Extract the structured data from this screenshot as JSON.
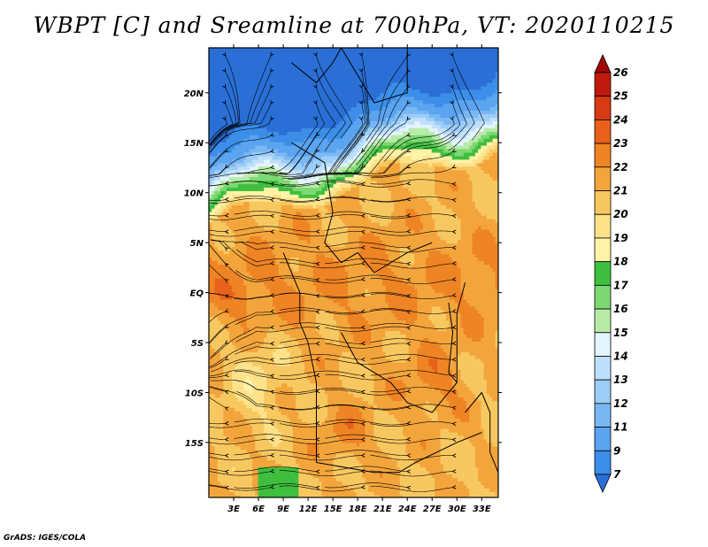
{
  "title": "WBPT [C] and Sreamline at 700hPa, VT: 2020110215",
  "credit": "GrADS: IGES/COLA",
  "map": {
    "lon_ticks": [
      "3E",
      "6E",
      "9E",
      "12E",
      "15E",
      "18E",
      "21E",
      "24E",
      "27E",
      "30E",
      "33E"
    ],
    "lat_ticks": [
      "20N",
      "15N",
      "10N",
      "5N",
      "EQ",
      "5S",
      "10S",
      "15S"
    ],
    "lon_range": [
      0,
      35
    ],
    "lat_range": [
      -20.5,
      24.5
    ]
  },
  "colorbar": {
    "labels": [
      "7",
      "9",
      "11",
      "12",
      "13",
      "14",
      "15",
      "16",
      "17",
      "18",
      "19",
      "20",
      "21",
      "22",
      "23",
      "24",
      "25",
      "26"
    ],
    "colors": [
      "#2a6fd6",
      "#3c8ee8",
      "#5aa4f0",
      "#7ab8f4",
      "#9ccdf8",
      "#bfe0fb",
      "#e2f4fc",
      "#b8eba8",
      "#7dd873",
      "#3fbf3f",
      "#fff3a8",
      "#fde28a",
      "#f8c860",
      "#f3a53c",
      "#ef8424",
      "#e8601a",
      "#d83a14",
      "#c01a0e",
      "#a00808"
    ]
  },
  "legend": {
    "shading": "WBPT [C]",
    "lines": "Streamline at 700hPa"
  }
}
